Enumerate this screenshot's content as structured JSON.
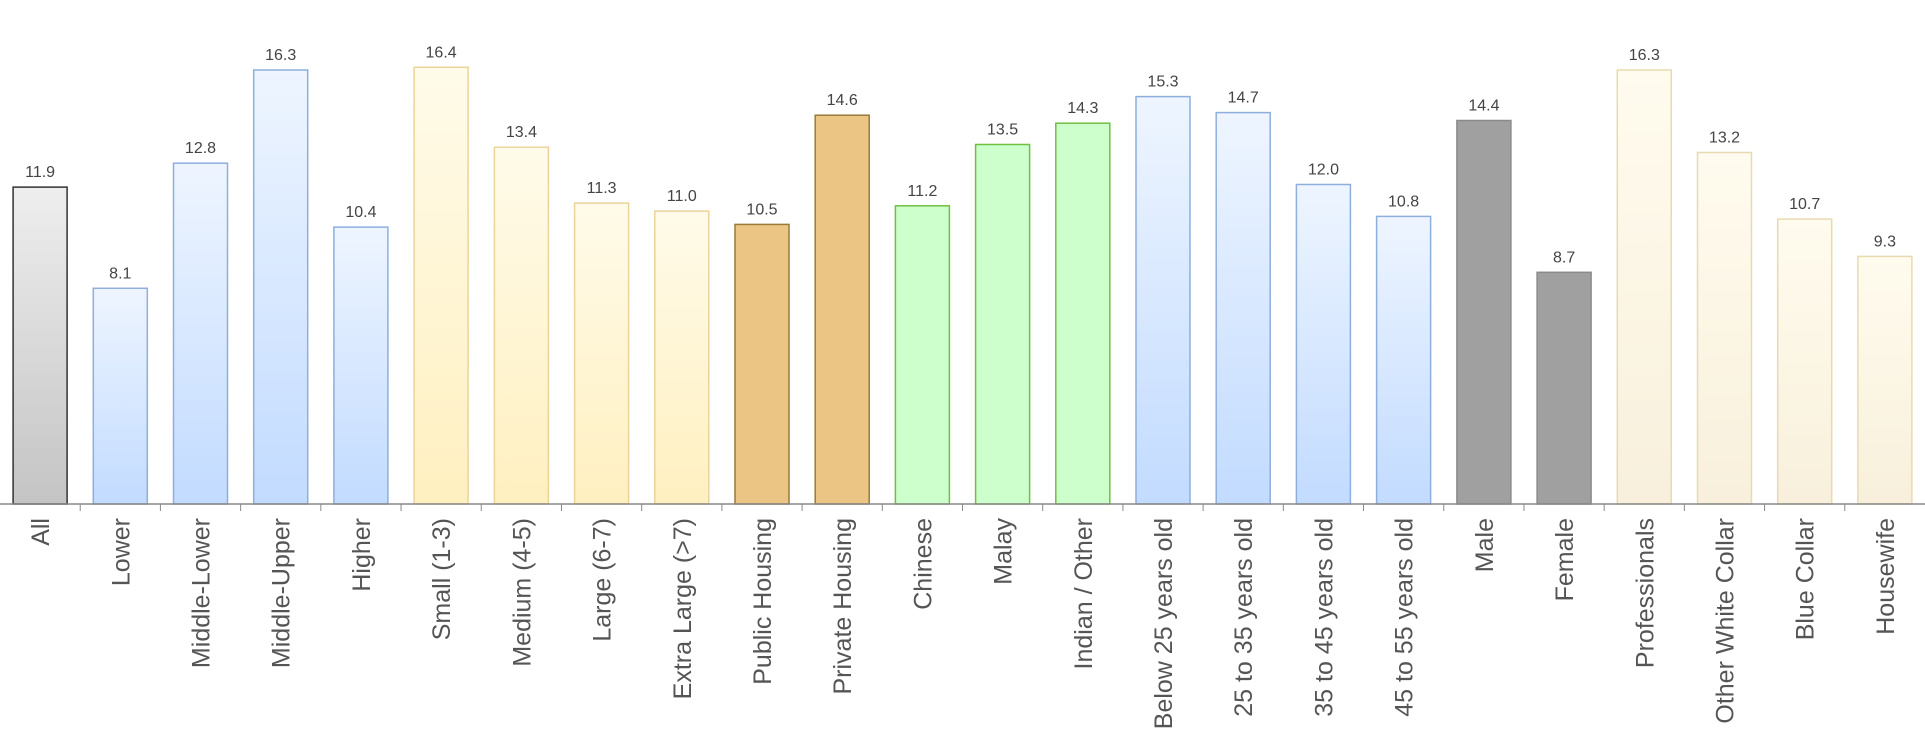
{
  "chart_data": {
    "type": "bar",
    "categories": [
      "All",
      "Lower",
      "Middle-Lower",
      "Middle-Upper",
      "Higher",
      "Small (1-3)",
      "Medium (4-5)",
      "Large (6-7)",
      "Extra Large (>7)",
      "Public Housing",
      "Private Housing",
      "Chinese",
      "Malay",
      "Indian / Other",
      "Below 25 years old",
      "25 to 35 years old",
      "35 to 45 years old",
      "45 to 55 years old",
      "Male",
      "Female",
      "Professionals",
      "Other White Collar",
      "Blue Collar",
      "Housewife"
    ],
    "values": [
      11.9,
      8.1,
      12.8,
      16.3,
      10.4,
      16.4,
      13.4,
      11.3,
      11.0,
      10.5,
      14.6,
      11.2,
      13.5,
      14.3,
      15.3,
      14.7,
      12.0,
      10.8,
      14.4,
      8.7,
      16.3,
      13.2,
      10.7,
      9.3
    ],
    "value_labels": [
      "11.9",
      "8.1",
      "12.8",
      "16.3",
      "10.4",
      "16.4",
      "13.4",
      "11.3",
      "11.0",
      "10.5",
      "14.6",
      "11.2",
      "13.5",
      "14.3",
      "15.3",
      "14.7",
      "12.0",
      "10.8",
      "14.4",
      "8.7",
      "16.3",
      "13.2",
      "10.7",
      "9.3"
    ],
    "groups": [
      "all",
      "income",
      "income",
      "income",
      "income",
      "size",
      "size",
      "size",
      "size",
      "housing",
      "housing",
      "race",
      "race",
      "race",
      "age",
      "age",
      "age",
      "age",
      "gender",
      "gender",
      "occupation",
      "occupation",
      "occupation",
      "occupation"
    ],
    "group_colors": {
      "all": {
        "top": "#eeeeee",
        "bottom": "#c4c4c4",
        "stroke": "#333333"
      },
      "income": {
        "top": "#eef5ff",
        "bottom": "#c2dbff",
        "stroke": "#8eaede"
      },
      "size": {
        "top": "#fffbea",
        "bottom": "#fff0c0",
        "stroke": "#e9d49a"
      },
      "housing": {
        "top": "#ebc584",
        "bottom": "#ebc584",
        "stroke": "#9a7a3a"
      },
      "race": {
        "top": "#ccffcc",
        "bottom": "#ccffcc",
        "stroke": "#70c040"
      },
      "age": {
        "top": "#eef5ff",
        "bottom": "#c2dbff",
        "stroke": "#8eaede"
      },
      "gender": {
        "top": "#a0a0a0",
        "bottom": "#a0a0a0",
        "stroke": "#8a8a8a"
      },
      "occupation": {
        "top": "#fffbee",
        "bottom": "#f8f0dc",
        "stroke": "#e8dab0"
      }
    },
    "ylim": [
      0,
      17.5
    ],
    "title": "",
    "xlabel": "",
    "ylabel": "",
    "grid": false,
    "legend": "none",
    "baseline_color": "#888888"
  }
}
